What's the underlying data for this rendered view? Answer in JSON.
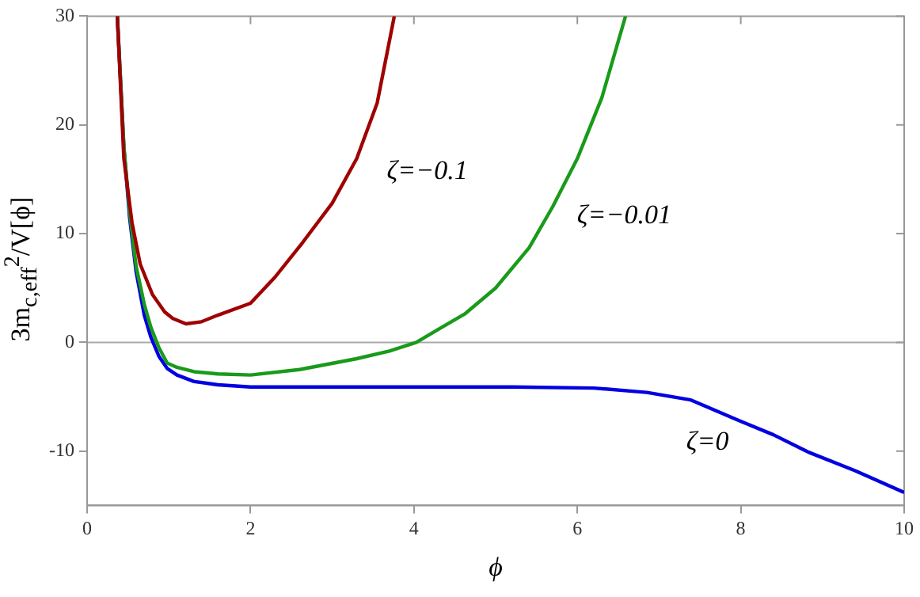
{
  "chart_data": {
    "type": "line",
    "xlabel": "ϕ",
    "ylabel": "3m$_{c,eff}$$^{2}$/V[ϕ]",
    "xlim": [
      0,
      10
    ],
    "xticks": [
      0,
      2,
      4,
      6,
      8,
      10
    ],
    "ylim": [
      -15,
      30
    ],
    "yticks": [
      -10,
      0,
      10,
      20,
      30
    ],
    "grid": false,
    "ref_lines": [
      {
        "axis": "y",
        "value": 0,
        "color": "#aaaaaa"
      }
    ],
    "series": [
      {
        "name": "ζ=−0.1",
        "color": "#a00000",
        "x": [
          0.37,
          0.45,
          0.55,
          0.65,
          0.8,
          0.95,
          1.05,
          1.21,
          1.4,
          1.6,
          2,
          2.3,
          2.64,
          3,
          3.3,
          3.55,
          3.76
        ],
        "values": [
          30,
          16.9,
          11,
          7.2,
          4.4,
          2.8,
          2.2,
          1.7,
          1.9,
          2.5,
          3.6,
          6,
          9.2,
          12.8,
          16.9,
          22,
          30
        ]
      },
      {
        "name": "ζ=−0.01",
        "color": "#1a9a1a",
        "x": [
          0.37,
          0.45,
          0.52,
          0.6,
          0.7,
          0.78,
          0.88,
          0.98,
          1.1,
          1.31,
          1.6,
          2,
          2.6,
          3.3,
          3.7,
          4.03,
          4.3,
          4.62,
          5,
          5.41,
          5.7,
          6,
          6.3,
          6.59
        ],
        "values": [
          30,
          18,
          12,
          7,
          3.5,
          1.4,
          -0.5,
          -1.9,
          -2.3,
          -2.7,
          -2.9,
          -3.0,
          -2.5,
          -1.5,
          -0.8,
          0,
          1.2,
          2.6,
          5,
          8.7,
          12.5,
          16.9,
          22.5,
          30
        ]
      },
      {
        "name": "ζ=0",
        "color": "#0000e0",
        "x": [
          0.37,
          0.45,
          0.52,
          0.6,
          0.7,
          0.78,
          0.88,
          0.98,
          1.1,
          1.31,
          1.6,
          2,
          3,
          4,
          5.21,
          6.2,
          6.85,
          7.39,
          7.98,
          8.4,
          8.83,
          9.4,
          10
        ],
        "values": [
          30,
          18,
          11.5,
          6.5,
          2.5,
          0.5,
          -1.3,
          -2.4,
          -3.0,
          -3.6,
          -3.9,
          -4.1,
          -4.1,
          -4.1,
          -4.1,
          -4.2,
          -4.6,
          -5.3,
          -7.2,
          -8.5,
          -10.1,
          -11.8,
          -13.8
        ]
      }
    ]
  }
}
